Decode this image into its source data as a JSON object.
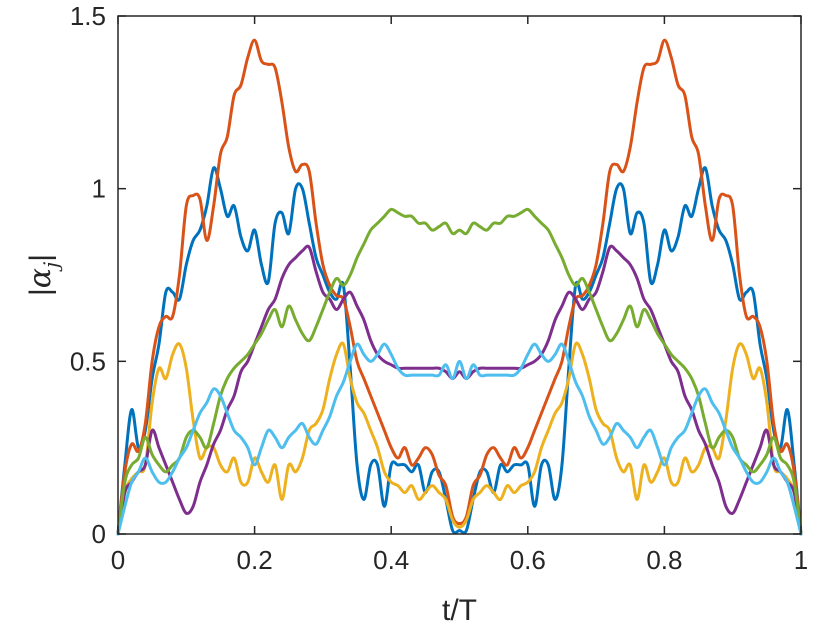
{
  "chart_data": {
    "type": "line",
    "xlabel": "t/T",
    "ylabel": {
      "bar_left": "|",
      "symbol": "α",
      "subscript": "j",
      "bar_right": "|"
    },
    "xlim": [
      0,
      1
    ],
    "ylim": [
      0,
      1.5
    ],
    "x_ticks": [
      0,
      0.2,
      0.4,
      0.6,
      0.8,
      1
    ],
    "x_tick_labels": [
      "0",
      "0.2",
      "0.4",
      "0.6",
      "0.8",
      "1"
    ],
    "y_ticks": [
      0,
      0.5,
      1,
      1.5
    ],
    "y_tick_labels": [
      "0",
      "0.5",
      "1",
      "1.5"
    ],
    "grid": false,
    "legend": "none",
    "symmetry": "symmetric about t/T = 0.5",
    "x": [
      0,
      0.01,
      0.02,
      0.03,
      0.04,
      0.05,
      0.06,
      0.07,
      0.08,
      0.09,
      0.1,
      0.11,
      0.12,
      0.13,
      0.14,
      0.15,
      0.16,
      0.17,
      0.18,
      0.19,
      0.2,
      0.21,
      0.22,
      0.23,
      0.24,
      0.25,
      0.26,
      0.27,
      0.28,
      0.29,
      0.3,
      0.31,
      0.32,
      0.33,
      0.34,
      0.35,
      0.36,
      0.37,
      0.38,
      0.39,
      0.4,
      0.41,
      0.42,
      0.43,
      0.44,
      0.45,
      0.46,
      0.47,
      0.48,
      0.49,
      0.5
    ],
    "series": [
      {
        "color": "#0072bd",
        "values": [
          0.0,
          0.2,
          0.36,
          0.25,
          0.3,
          0.45,
          0.55,
          0.7,
          0.7,
          0.68,
          0.78,
          0.85,
          0.88,
          0.95,
          1.06,
          1.0,
          0.92,
          0.95,
          0.86,
          0.82,
          0.88,
          0.78,
          0.73,
          0.9,
          0.93,
          0.87,
          1.0,
          1.0,
          0.9,
          0.8,
          0.75,
          0.7,
          0.68,
          0.72,
          0.48,
          0.2,
          0.1,
          0.2,
          0.2,
          0.08,
          0.2,
          0.2,
          0.2,
          0.18,
          0.2,
          0.12,
          0.18,
          0.18,
          0.1,
          0.01,
          0.01
        ]
      },
      {
        "color": "#d95319",
        "values": [
          0.0,
          0.18,
          0.26,
          0.24,
          0.32,
          0.5,
          0.6,
          0.63,
          0.63,
          0.75,
          0.95,
          0.98,
          0.97,
          0.85,
          0.95,
          1.1,
          1.15,
          1.27,
          1.3,
          1.38,
          1.43,
          1.37,
          1.36,
          1.35,
          1.25,
          1.12,
          1.05,
          1.07,
          1.05,
          0.9,
          0.78,
          0.72,
          0.69,
          0.68,
          0.6,
          0.5,
          0.45,
          0.4,
          0.35,
          0.3,
          0.25,
          0.22,
          0.25,
          0.2,
          0.22,
          0.25,
          0.23,
          0.17,
          0.14,
          0.05,
          0.03
        ]
      },
      {
        "color": "#edb120",
        "values": [
          0.0,
          0.12,
          0.16,
          0.18,
          0.2,
          0.38,
          0.48,
          0.45,
          0.52,
          0.55,
          0.48,
          0.33,
          0.22,
          0.25,
          0.25,
          0.2,
          0.18,
          0.22,
          0.15,
          0.15,
          0.22,
          0.18,
          0.15,
          0.2,
          0.1,
          0.2,
          0.18,
          0.22,
          0.3,
          0.32,
          0.36,
          0.45,
          0.52,
          0.55,
          0.45,
          0.38,
          0.35,
          0.3,
          0.25,
          0.18,
          0.15,
          0.14,
          0.12,
          0.14,
          0.1,
          0.12,
          0.14,
          0.12,
          0.1,
          0.04,
          0.02
        ]
      },
      {
        "color": "#7e2f8e",
        "values": [
          0.0,
          0.12,
          0.15,
          0.18,
          0.2,
          0.3,
          0.25,
          0.2,
          0.15,
          0.1,
          0.06,
          0.08,
          0.15,
          0.2,
          0.26,
          0.3,
          0.36,
          0.4,
          0.47,
          0.5,
          0.55,
          0.6,
          0.65,
          0.68,
          0.74,
          0.78,
          0.8,
          0.82,
          0.83,
          0.76,
          0.7,
          0.68,
          0.65,
          0.68,
          0.7,
          0.66,
          0.62,
          0.56,
          0.52,
          0.5,
          0.49,
          0.48,
          0.48,
          0.48,
          0.48,
          0.48,
          0.48,
          0.48,
          0.47,
          0.45,
          0.47
        ]
      },
      {
        "color": "#77ac30",
        "values": [
          0.0,
          0.15,
          0.2,
          0.22,
          0.28,
          0.23,
          0.2,
          0.18,
          0.2,
          0.22,
          0.28,
          0.3,
          0.28,
          0.25,
          0.32,
          0.4,
          0.45,
          0.48,
          0.5,
          0.52,
          0.55,
          0.58,
          0.62,
          0.65,
          0.6,
          0.66,
          0.62,
          0.58,
          0.56,
          0.6,
          0.65,
          0.7,
          0.74,
          0.72,
          0.75,
          0.8,
          0.84,
          0.88,
          0.9,
          0.92,
          0.94,
          0.93,
          0.92,
          0.92,
          0.9,
          0.9,
          0.88,
          0.89,
          0.9,
          0.87,
          0.88
        ]
      },
      {
        "color": "#4dbeee",
        "values": [
          0.0,
          0.08,
          0.15,
          0.18,
          0.22,
          0.18,
          0.15,
          0.15,
          0.18,
          0.22,
          0.25,
          0.3,
          0.35,
          0.38,
          0.42,
          0.4,
          0.35,
          0.3,
          0.28,
          0.25,
          0.2,
          0.25,
          0.3,
          0.28,
          0.25,
          0.28,
          0.3,
          0.32,
          0.28,
          0.26,
          0.3,
          0.34,
          0.4,
          0.44,
          0.5,
          0.55,
          0.52,
          0.5,
          0.52,
          0.55,
          0.52,
          0.48,
          0.46,
          0.46,
          0.46,
          0.46,
          0.46,
          0.46,
          0.49,
          0.45,
          0.5
        ]
      }
    ]
  }
}
